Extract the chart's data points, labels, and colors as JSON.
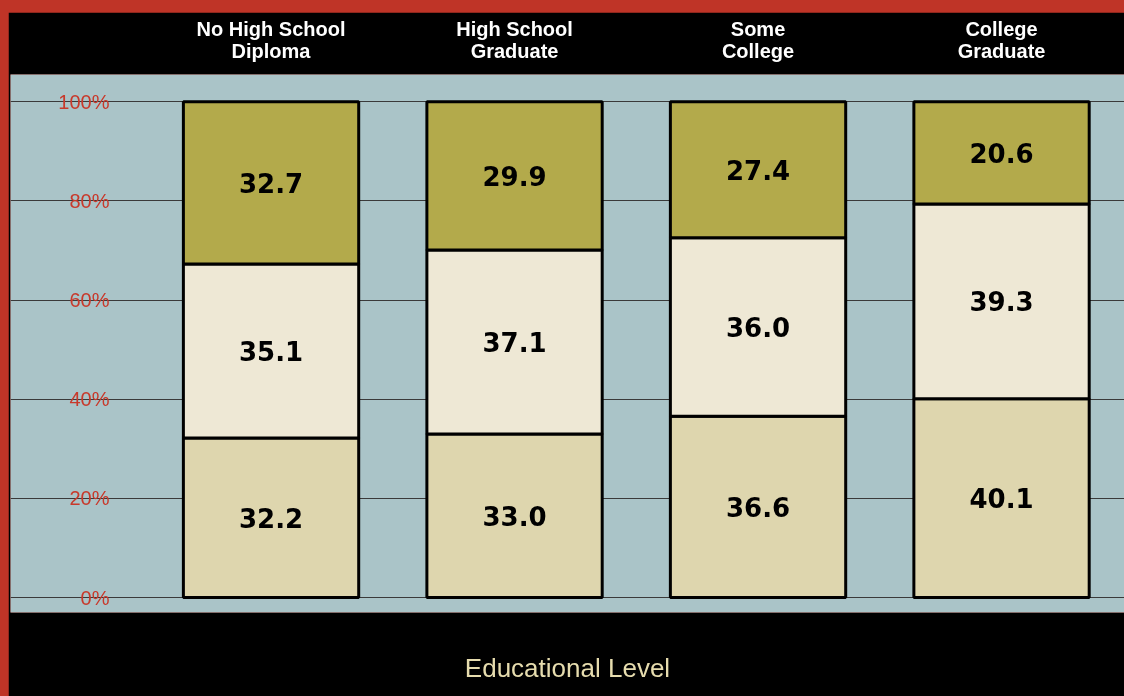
{
  "chart_data": {
    "type": "bar",
    "stacked": true,
    "categories": [
      "No High School Diploma",
      "High School Graduate",
      "Some College",
      "College Graduate"
    ],
    "series": [
      {
        "color": "#ded6ae",
        "values": [
          32.2,
          33.0,
          36.6,
          40.1
        ],
        "value_labels": [
          "32.2",
          "33.0",
          "36.6",
          "40.1"
        ]
      },
      {
        "color": "#eee8d5",
        "values": [
          35.1,
          37.1,
          36.0,
          39.3
        ],
        "value_labels": [
          "35.1",
          "37.1",
          "36.0",
          "39.3"
        ]
      },
      {
        "color": "#b3aa4b",
        "values": [
          32.7,
          29.9,
          27.4,
          20.6
        ],
        "value_labels": [
          "32.7",
          "29.9",
          "27.4",
          "20.6"
        ]
      }
    ],
    "xlabel": "Educational Level",
    "ylim": [
      -3,
      105.5
    ],
    "yticks": [
      {
        "value": 0,
        "label": "0%"
      },
      {
        "value": 20,
        "label": "20%"
      },
      {
        "value": 40,
        "label": "40%"
      },
      {
        "value": 60,
        "label": "60%"
      },
      {
        "value": 80,
        "label": "80%"
      },
      {
        "value": 100,
        "label": "100%"
      }
    ],
    "grid": "y"
  }
}
